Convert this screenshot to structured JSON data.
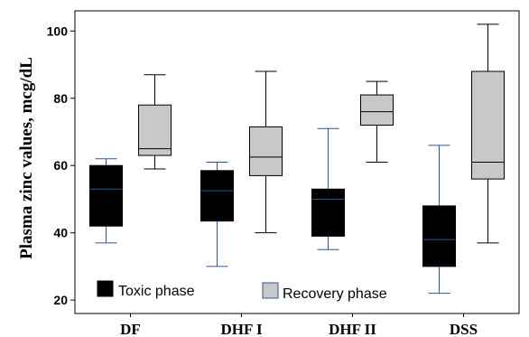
{
  "chart_data": {
    "type": "box",
    "ylabel": "Plasma zinc values, mcg/dL",
    "xlabel": "",
    "title": "",
    "ylim": [
      16,
      106
    ],
    "yticks": [
      20,
      40,
      60,
      80,
      100
    ],
    "grid": false,
    "legend_position": "bottom-left",
    "categories": [
      "DF",
      "DHF I",
      "DHF II",
      "DSS"
    ],
    "series": [
      {
        "name": "Toxic phase",
        "color": "#000000",
        "median_color": "#2f5597",
        "boxes": [
          {
            "min": 37,
            "q1": 42,
            "median": 53,
            "q3": 60,
            "max": 62
          },
          {
            "min": 30,
            "q1": 43.5,
            "median": 52.5,
            "q3": 58.5,
            "max": 61
          },
          {
            "min": 35,
            "q1": 39,
            "median": 50,
            "q3": 53,
            "max": 71
          },
          {
            "min": 22,
            "q1": 30,
            "median": 38,
            "q3": 48,
            "max": 66
          }
        ]
      },
      {
        "name": "Recovery phase",
        "color": "#c8c8c8",
        "median_color": "#000000",
        "boxes": [
          {
            "min": 59,
            "q1": 63,
            "median": 65,
            "q3": 78,
            "max": 87
          },
          {
            "min": 40,
            "q1": 57,
            "median": 62.5,
            "q3": 71.5,
            "max": 88
          },
          {
            "min": 61,
            "q1": 72,
            "median": 76,
            "q3": 81,
            "max": 85
          },
          {
            "min": 37,
            "q1": 56,
            "median": 61,
            "q3": 88,
            "max": 102
          }
        ]
      }
    ]
  }
}
